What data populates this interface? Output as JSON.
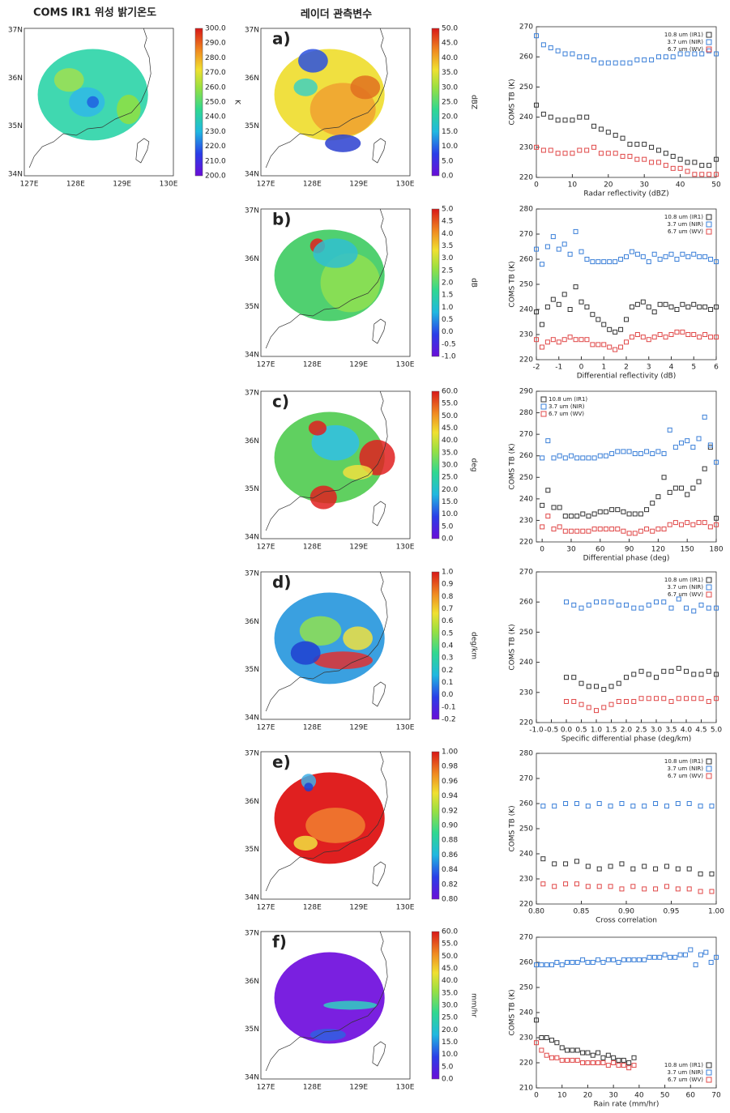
{
  "header": {
    "left_title": "COMS IR1 위성 밝기온도",
    "center_title": "레이더 관측변수"
  },
  "map_axes": {
    "lat_labels": [
      "37N",
      "36N",
      "35N",
      "34N"
    ],
    "lon_labels": [
      "127E",
      "128E",
      "129E",
      "130E"
    ]
  },
  "maps": [
    {
      "colorbar_unit": "K",
      "colorbar_ticks": [
        "300.0",
        "290.0",
        "280.0",
        "270.0",
        "260.0",
        "250.0",
        "240.0",
        "230.0",
        "220.0",
        "210.0",
        "200.0"
      ]
    },
    {
      "panel": "a)",
      "colorbar_unit": "dBZ",
      "colorbar_ticks": [
        "50.0",
        "45.0",
        "40.0",
        "35.0",
        "30.0",
        "25.0",
        "20.0",
        "15.0",
        "10.0",
        "5.0",
        "0.0"
      ]
    },
    {
      "panel": "b)",
      "colorbar_unit": "dB",
      "colorbar_ticks": [
        "5.0",
        "4.5",
        "4.0",
        "3.5",
        "3.0",
        "2.5",
        "2.0",
        "1.5",
        "1.0",
        "0.5",
        "0.0",
        "-0.5",
        "-1.0"
      ]
    },
    {
      "panel": "c)",
      "colorbar_unit": "deg",
      "colorbar_ticks": [
        "60.0",
        "55.0",
        "50.0",
        "45.0",
        "40.0",
        "35.0",
        "30.0",
        "25.0",
        "20.0",
        "15.0",
        "10.0",
        "5.0",
        "0.0"
      ]
    },
    {
      "panel": "d)",
      "colorbar_unit": "deg/km",
      "colorbar_ticks": [
        "1.0",
        "0.9",
        "0.8",
        "0.7",
        "0.6",
        "0.5",
        "0.4",
        "0.3",
        "0.2",
        "0.1",
        "0.0",
        "-0.1",
        "-0.2"
      ]
    },
    {
      "panel": "e)",
      "colorbar_ticks": [
        "1.00",
        "0.98",
        "0.96",
        "0.94",
        "0.92",
        "0.90",
        "0.88",
        "0.86",
        "0.84",
        "0.82",
        "0.80"
      ]
    },
    {
      "panel": "f)",
      "colorbar_unit": "mm/hr",
      "colorbar_ticks": [
        "60.0",
        "55.0",
        "50.0",
        "45.0",
        "40.0",
        "35.0",
        "30.0",
        "25.0",
        "20.0",
        "15.0",
        "10.0",
        "5.0",
        "0.0"
      ]
    }
  ],
  "chart_data": [
    {
      "type": "scatter",
      "xlabel": "Radar reflectivity (dBZ)",
      "ylabel": "COMS TB (K)",
      "legend": "top-right",
      "xlim": [
        0,
        50
      ],
      "xticks": [
        0,
        10,
        20,
        30,
        40,
        50
      ],
      "ylim": [
        220,
        270
      ],
      "yticks": [
        220,
        230,
        240,
        250,
        260,
        270
      ],
      "x": [
        0,
        2,
        4,
        6,
        8,
        10,
        12,
        14,
        16,
        18,
        20,
        22,
        24,
        26,
        28,
        30,
        32,
        34,
        36,
        38,
        40,
        42,
        44,
        46,
        48,
        50
      ],
      "series": [
        {
          "name": "10.8 um (IR1)",
          "color": "#333333",
          "values": [
            244,
            241,
            240,
            239,
            239,
            239,
            240,
            240,
            237,
            236,
            235,
            234,
            233,
            231,
            231,
            231,
            230,
            229,
            228,
            227,
            226,
            225,
            225,
            224,
            224,
            226
          ]
        },
        {
          "name": "3.7 um (NIR)",
          "color": "#3a7fd8",
          "values": [
            267,
            264,
            263,
            262,
            261,
            261,
            260,
            260,
            259,
            258,
            258,
            258,
            258,
            258,
            259,
            259,
            259,
            260,
            260,
            260,
            261,
            261,
            261,
            261,
            262,
            261
          ]
        },
        {
          "name": "6.7 um (WV)",
          "color": "#e04848",
          "values": [
            230,
            229,
            229,
            228,
            228,
            228,
            229,
            229,
            230,
            228,
            228,
            228,
            227,
            227,
            226,
            226,
            225,
            225,
            224,
            223,
            223,
            222,
            221,
            221,
            221,
            221
          ]
        }
      ]
    },
    {
      "type": "scatter",
      "xlabel": "Differential reflectivity (dB)",
      "ylabel": "COMS TB (K)",
      "legend": "top-right",
      "xlim": [
        -2,
        6
      ],
      "xticks": [
        -2,
        -1,
        0,
        1,
        2,
        3,
        4,
        5,
        6
      ],
      "ylim": [
        220,
        280
      ],
      "yticks": [
        220,
        230,
        240,
        250,
        260,
        270,
        280
      ],
      "x": [
        -2,
        -1.75,
        -1.5,
        -1.25,
        -1,
        -0.75,
        -0.5,
        -0.25,
        0,
        0.25,
        0.5,
        0.75,
        1,
        1.25,
        1.5,
        1.75,
        2,
        2.25,
        2.5,
        2.75,
        3,
        3.25,
        3.5,
        3.75,
        4,
        4.25,
        4.5,
        4.75,
        5,
        5.25,
        5.5,
        5.75,
        6
      ],
      "series": [
        {
          "name": "10.8 um (IR1)",
          "color": "#333333",
          "values": [
            239,
            234,
            241,
            244,
            242,
            246,
            240,
            249,
            243,
            241,
            238,
            236,
            234,
            232,
            231,
            232,
            236,
            241,
            242,
            243,
            241,
            239,
            242,
            242,
            241,
            240,
            242,
            241,
            242,
            241,
            241,
            240,
            241
          ]
        },
        {
          "name": "3.7 um (NIR)",
          "color": "#3a7fd8",
          "values": [
            264,
            258,
            265,
            269,
            264,
            266,
            262,
            271,
            263,
            260,
            259,
            259,
            259,
            259,
            259,
            260,
            261,
            263,
            262,
            261,
            259,
            262,
            260,
            261,
            262,
            260,
            262,
            261,
            262,
            261,
            261,
            260,
            259
          ]
        },
        {
          "name": "6.7 um (WV)",
          "color": "#e04848",
          "values": [
            228,
            225,
            227,
            228,
            227,
            228,
            229,
            228,
            228,
            228,
            226,
            226,
            226,
            225,
            224,
            225,
            227,
            229,
            230,
            229,
            228,
            229,
            230,
            229,
            230,
            231,
            231,
            230,
            230,
            229,
            230,
            229,
            229
          ]
        }
      ]
    },
    {
      "type": "scatter",
      "xlabel": "Differential phase (deg)",
      "ylabel": "COMS TB (K)",
      "legend": "top-left",
      "xlim": [
        -6,
        180
      ],
      "xticks": [
        0,
        30,
        60,
        90,
        120,
        150,
        180
      ],
      "ylim": [
        220,
        290
      ],
      "yticks": [
        220,
        230,
        240,
        250,
        260,
        270,
        280,
        290
      ],
      "x": [
        0,
        6,
        12,
        18,
        24,
        30,
        36,
        42,
        48,
        54,
        60,
        66,
        72,
        78,
        84,
        90,
        96,
        102,
        108,
        114,
        120,
        126,
        132,
        138,
        144,
        150,
        156,
        162,
        168,
        174,
        180
      ],
      "series": [
        {
          "name": "10.8 um (IR1)",
          "color": "#333333",
          "values": [
            237,
            244,
            236,
            236,
            232,
            232,
            232,
            233,
            232,
            233,
            234,
            234,
            235,
            235,
            234,
            233,
            233,
            233,
            235,
            238,
            241,
            250,
            243,
            245,
            245,
            242,
            245,
            248,
            254,
            264,
            231
          ]
        },
        {
          "name": "3.7 um (NIR)",
          "color": "#3a7fd8",
          "values": [
            259,
            267,
            259,
            260,
            259,
            260,
            259,
            259,
            259,
            259,
            260,
            260,
            261,
            262,
            262,
            262,
            261,
            261,
            262,
            261,
            262,
            261,
            272,
            264,
            266,
            267,
            264,
            268,
            278,
            265,
            257
          ]
        },
        {
          "name": "6.7 um (WV)",
          "color": "#e04848",
          "values": [
            227,
            232,
            226,
            227,
            225,
            225,
            225,
            225,
            225,
            226,
            226,
            226,
            226,
            226,
            225,
            224,
            224,
            225,
            226,
            225,
            226,
            226,
            228,
            229,
            228,
            229,
            228,
            229,
            229,
            227,
            228
          ]
        }
      ]
    },
    {
      "type": "scatter",
      "xlabel": "Specific differential phase (deg/km)",
      "ylabel": "COMS TB (K)",
      "legend": "top-right",
      "xlim": [
        -1,
        5
      ],
      "xticks": [
        {
          "value": -1,
          "label": "-1.0"
        },
        {
          "value": -0.5,
          "label": "-0.5"
        },
        {
          "value": 0,
          "label": "0.0"
        },
        0.5,
        {
          "value": 1,
          "label": "1.0"
        },
        1.5,
        {
          "value": 2,
          "label": "2.0"
        },
        2.5,
        {
          "value": 3,
          "label": "3.0"
        },
        3.5,
        {
          "value": 4,
          "label": "4.0"
        },
        4.5,
        {
          "value": 5,
          "label": "5.0"
        }
      ],
      "ylim": [
        220,
        270
      ],
      "yticks": [
        220,
        230,
        240,
        250,
        260,
        270
      ],
      "x": [
        0,
        0.25,
        0.5,
        0.75,
        1,
        1.25,
        1.5,
        1.75,
        2,
        2.25,
        2.5,
        2.75,
        3,
        3.25,
        3.5,
        3.75,
        4,
        4.25,
        4.5,
        4.75,
        5
      ],
      "series": [
        {
          "name": "10.8 um (IR1)",
          "color": "#333333",
          "values": [
            235,
            235,
            233,
            232,
            232,
            231,
            232,
            233,
            235,
            236,
            237,
            236,
            235,
            237,
            237,
            238,
            237,
            236,
            236,
            237,
            236
          ]
        },
        {
          "name": "3.7 um (NIR)",
          "color": "#3a7fd8",
          "values": [
            260,
            259,
            258,
            259,
            260,
            260,
            260,
            259,
            259,
            258,
            258,
            259,
            260,
            260,
            258,
            261,
            258,
            257,
            259,
            258,
            258
          ]
        },
        {
          "name": "6.7 um (WV)",
          "color": "#e04848",
          "values": [
            227,
            227,
            226,
            225,
            224,
            225,
            226,
            227,
            227,
            227,
            228,
            228,
            228,
            228,
            227,
            228,
            228,
            228,
            228,
            227,
            228
          ]
        }
      ]
    },
    {
      "type": "scatter",
      "xlabel": "Cross correlation",
      "ylabel": "COMS TB (K)",
      "legend": "top-right",
      "xlim": [
        0.8,
        1
      ],
      "xticks": [
        {
          "value": 0.8,
          "label": "0.80"
        },
        0.85,
        {
          "value": 0.9,
          "label": "0.90"
        },
        0.95,
        {
          "value": 1,
          "label": "1.00"
        }
      ],
      "ylim": [
        220,
        280
      ],
      "yticks": [
        220,
        230,
        240,
        250,
        260,
        270,
        280
      ],
      "x": [
        0.8075,
        0.82,
        0.8325,
        0.845,
        0.8575,
        0.87,
        0.8825,
        0.895,
        0.9075,
        0.92,
        0.9325,
        0.945,
        0.9575,
        0.97,
        0.9825,
        0.995
      ],
      "series": [
        {
          "name": "10.8 um (IR1)",
          "color": "#333333",
          "values": [
            238,
            236,
            236,
            237,
            235,
            234,
            235,
            236,
            234,
            235,
            234,
            235,
            234,
            234,
            232,
            232
          ]
        },
        {
          "name": "3.7 um (NIR)",
          "color": "#3a7fd8",
          "values": [
            259,
            259,
            260,
            260,
            259,
            260,
            259,
            260,
            259,
            259,
            260,
            259,
            260,
            260,
            259,
            259
          ]
        },
        {
          "name": "6.7 um (WV)",
          "color": "#e04848",
          "values": [
            228,
            227,
            228,
            228,
            227,
            227,
            227,
            226,
            227,
            226,
            226,
            227,
            226,
            226,
            225,
            225
          ]
        }
      ]
    },
    {
      "type": "scatter",
      "xlabel": "Rain rate (mm/hr)",
      "ylabel": "COMS TB (K)",
      "legend": "bottom-right",
      "xlim": [
        0,
        70
      ],
      "xticks": [
        0,
        10,
        20,
        30,
        40,
        50,
        60,
        70
      ],
      "ylim": [
        210,
        270
      ],
      "yticks": [
        210,
        220,
        230,
        240,
        250,
        260,
        270
      ],
      "x": [
        0,
        2,
        4,
        6,
        8,
        10,
        12,
        14,
        16,
        18,
        20,
        22,
        24,
        26,
        28,
        30,
        32,
        34,
        36,
        38,
        40,
        42,
        44,
        46,
        48,
        50,
        52,
        54,
        56,
        58,
        60,
        62,
        64,
        66,
        68,
        70
      ],
      "series": [
        {
          "name": "10.8 um (IR1)",
          "color": "#333333",
          "values": [
            237,
            230,
            230,
            229,
            228,
            226,
            225,
            225,
            225,
            224,
            224,
            223,
            224,
            222,
            223,
            222,
            221,
            221,
            220,
            222,
            null,
            null,
            null,
            null,
            null,
            null,
            null,
            null,
            null,
            null,
            null,
            null,
            null,
            null,
            null,
            null
          ]
        },
        {
          "name": "3.7 um (NIR)",
          "color": "#3a7fd8",
          "values": [
            259,
            259,
            259,
            259,
            260,
            259,
            260,
            260,
            260,
            261,
            260,
            260,
            261,
            260,
            261,
            261,
            260,
            261,
            261,
            261,
            261,
            261,
            262,
            262,
            262,
            263,
            262,
            262,
            263,
            263,
            265,
            259,
            263,
            264,
            260,
            262
          ]
        },
        {
          "name": "6.7 um (WV)",
          "color": "#e04848",
          "values": [
            228,
            225,
            223,
            222,
            222,
            221,
            221,
            221,
            221,
            220,
            220,
            220,
            220,
            220,
            219,
            220,
            219,
            219,
            218,
            219,
            null,
            null,
            null,
            null,
            null,
            null,
            null,
            null,
            null,
            null,
            null,
            null,
            null,
            null,
            null,
            null
          ]
        }
      ]
    }
  ]
}
